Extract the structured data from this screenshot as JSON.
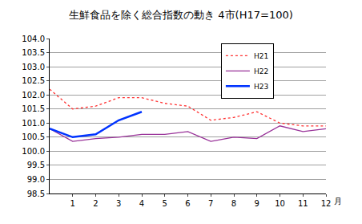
{
  "chart_data": {
    "type": "line",
    "title": "生鮮食品を除く総合指数の動き 4市(H17=100)",
    "xlabel": "月",
    "x": [
      0,
      1,
      2,
      3,
      4,
      5,
      6,
      7,
      8,
      9,
      10,
      11,
      12
    ],
    "series": [
      {
        "name": "H21",
        "color": "#ff3333",
        "line_style": "dotted",
        "values": [
          102.2,
          101.5,
          101.6,
          101.9,
          101.9,
          101.7,
          101.6,
          101.1,
          101.2,
          101.4,
          101.0,
          100.9,
          100.9
        ]
      },
      {
        "name": "H22",
        "color": "#993399",
        "line_style": "solid",
        "values": [
          100.8,
          100.35,
          100.45,
          100.5,
          100.6,
          100.6,
          100.7,
          100.35,
          100.5,
          100.45,
          100.9,
          100.7,
          100.8
        ]
      },
      {
        "name": "H23",
        "color": "#0033ff",
        "line_style": "solid",
        "values": [
          100.8,
          100.5,
          100.6,
          101.1,
          101.4,
          null,
          null,
          null,
          null,
          null,
          null,
          null,
          null
        ]
      }
    ],
    "xlim": [
      0,
      12
    ],
    "xticks": [
      1,
      2,
      3,
      4,
      5,
      6,
      7,
      8,
      9,
      10,
      11,
      12
    ],
    "ylim": [
      98.5,
      104.0
    ],
    "yticks": [
      98.5,
      {
        "value": 99,
        "label": "99.0"
      },
      99.5,
      {
        "value": 100,
        "label": "100.0"
      },
      100.5,
      {
        "value": 101,
        "label": "101.0"
      },
      101.5,
      {
        "value": 102,
        "label": "102.0"
      },
      102.5,
      {
        "value": 103,
        "label": "103.0"
      },
      103.5,
      {
        "value": 104,
        "label": "104.0"
      }
    ],
    "grid": true,
    "legend": "upper right"
  }
}
